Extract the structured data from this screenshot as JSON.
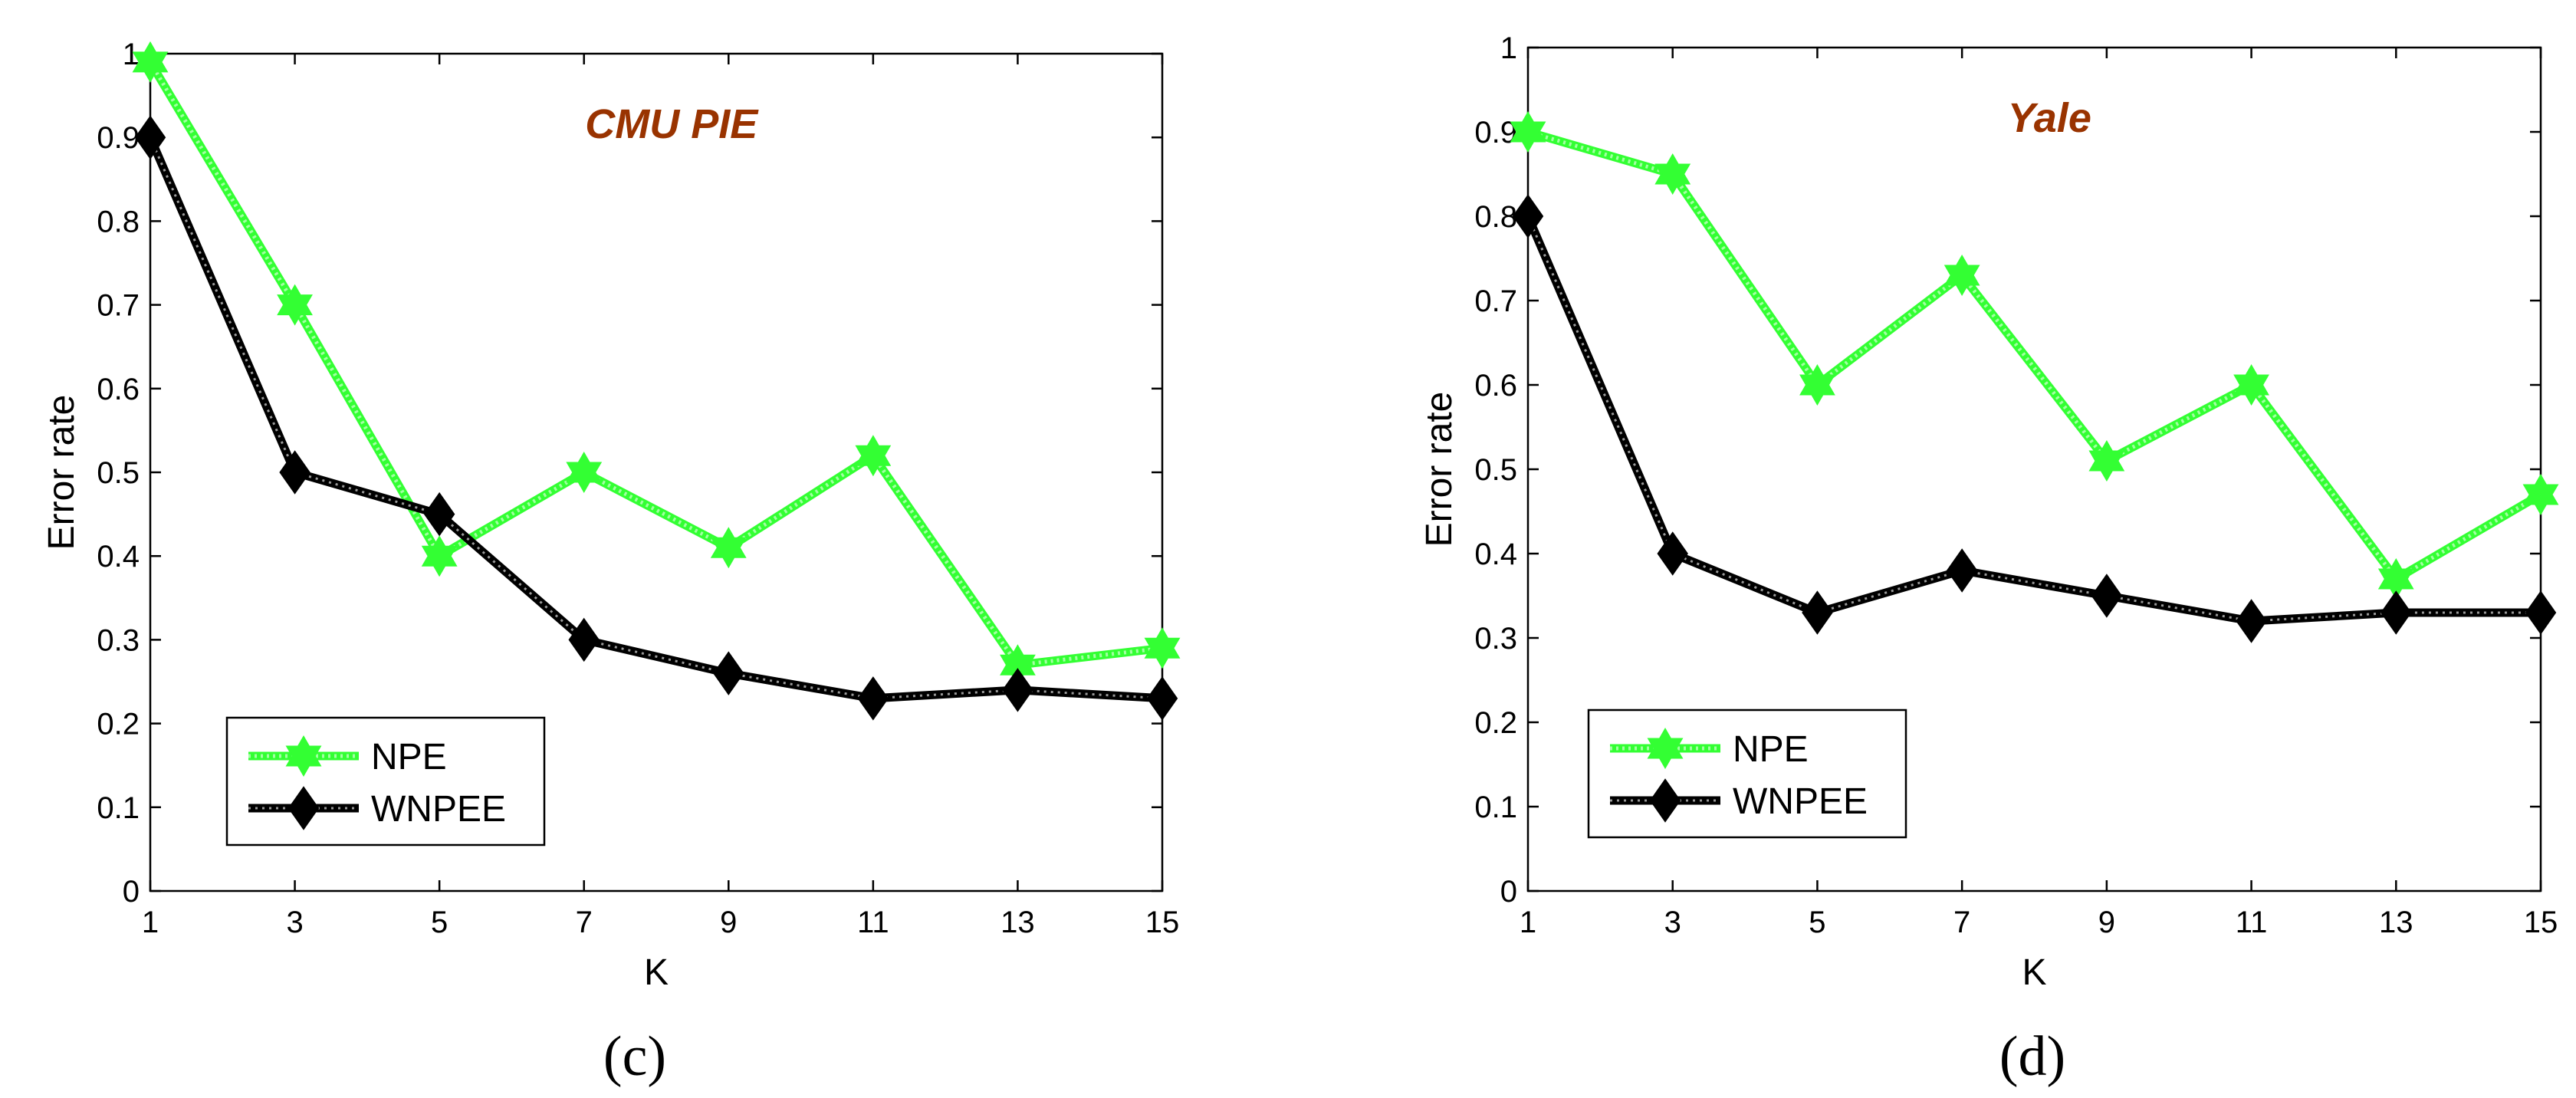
{
  "chart_data": [
    {
      "type": "line",
      "panel_label": "(c)",
      "title": "CMU PIE",
      "title_color": "#993300",
      "xlabel": "K",
      "ylabel": "Error rate",
      "x": [
        1,
        3,
        5,
        7,
        9,
        11,
        13,
        15
      ],
      "xlim": [
        1,
        15
      ],
      "ylim": [
        0,
        1
      ],
      "xticks": [
        "1",
        "3",
        "5",
        "7",
        "9",
        "11",
        "13",
        "15"
      ],
      "yticks": [
        "0",
        "0.1",
        "0.2",
        "0.3",
        "0.4",
        "0.5",
        "0.6",
        "0.7",
        "0.8",
        "0.9",
        "1"
      ],
      "legend_position": "lower-left",
      "series": [
        {
          "name": "NPE",
          "color": "#33ff33",
          "marker": "hexagram",
          "values": [
            0.99,
            0.7,
            0.4,
            0.5,
            0.41,
            0.52,
            0.27,
            0.29
          ]
        },
        {
          "name": "WNPEE",
          "color": "#000000",
          "marker": "diamond",
          "values": [
            0.9,
            0.5,
            0.45,
            0.3,
            0.26,
            0.23,
            0.24,
            0.23
          ]
        }
      ]
    },
    {
      "type": "line",
      "panel_label": "(d)",
      "title": "Yale",
      "title_color": "#993300",
      "xlabel": "K",
      "ylabel": "Error rate",
      "x": [
        1,
        3,
        5,
        7,
        9,
        11,
        13,
        15
      ],
      "xlim": [
        1,
        15
      ],
      "ylim": [
        0,
        1
      ],
      "xticks": [
        "1",
        "3",
        "5",
        "7",
        "9",
        "11",
        "13",
        "15"
      ],
      "yticks": [
        "0",
        "0.1",
        "0.2",
        "0.3",
        "0.4",
        "0.5",
        "0.6",
        "0.7",
        "0.8",
        "0.9",
        "1"
      ],
      "legend_position": "lower-left",
      "series": [
        {
          "name": "NPE",
          "color": "#33ff33",
          "marker": "hexagram",
          "values": [
            0.9,
            0.85,
            0.6,
            0.73,
            0.51,
            0.6,
            0.37,
            0.47
          ]
        },
        {
          "name": "WNPEE",
          "color": "#000000",
          "marker": "diamond",
          "values": [
            0.8,
            0.4,
            0.33,
            0.38,
            0.35,
            0.32,
            0.33,
            0.33
          ]
        }
      ]
    }
  ]
}
